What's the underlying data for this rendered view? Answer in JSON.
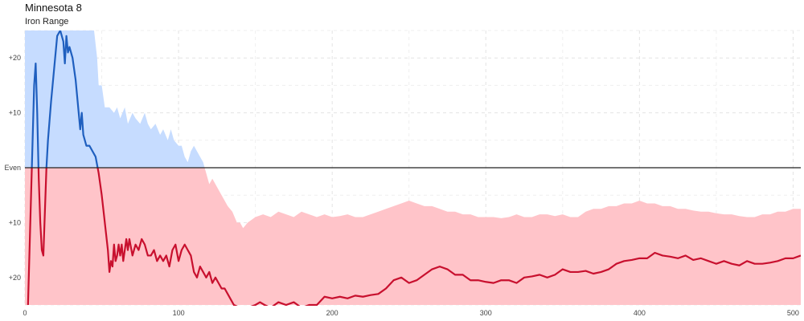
{
  "title": "Minnesota 8",
  "subtitle": "Iron Range",
  "chart_data": {
    "type": "line",
    "title": "Minnesota 8",
    "subtitle": "Iron Range",
    "xlim": [
      0,
      505
    ],
    "ylim": [
      -25,
      25
    ],
    "x_ticks": [
      0,
      100,
      200,
      300,
      400,
      500
    ],
    "y_ticks": [
      {
        "value": 20,
        "label": "+20"
      },
      {
        "value": 10,
        "label": "+10"
      },
      {
        "value": 0,
        "label": "Even"
      },
      {
        "value": -10,
        "label": "+10"
      },
      {
        "value": -20,
        "label": "+20"
      }
    ],
    "grid": true,
    "colors": {
      "positive_line": "#1f5fbf",
      "negative_line": "#c8102e",
      "positive_band": "#c6dcff",
      "negative_band": "#ffc4c9",
      "even_line": "#222222"
    },
    "series": [
      {
        "values": [
          [
            2,
            -25
          ],
          [
            3,
            -15
          ],
          [
            4,
            -5
          ],
          [
            5,
            5
          ],
          [
            6,
            15
          ],
          [
            7,
            19
          ],
          [
            8,
            10
          ],
          [
            9,
            -2
          ],
          [
            10,
            -10
          ],
          [
            11,
            -15
          ],
          [
            12,
            -16
          ],
          [
            13,
            -8
          ],
          [
            14,
            0
          ],
          [
            15,
            5
          ],
          [
            17,
            12
          ],
          [
            19,
            18
          ],
          [
            21,
            24
          ],
          [
            23,
            25
          ],
          [
            25,
            23
          ],
          [
            26,
            19
          ],
          [
            27,
            24
          ],
          [
            28,
            21
          ],
          [
            29,
            22
          ],
          [
            31,
            20
          ],
          [
            33,
            16
          ],
          [
            35,
            10
          ],
          [
            36,
            7
          ],
          [
            37,
            10
          ],
          [
            38,
            6
          ],
          [
            40,
            4
          ],
          [
            42,
            4
          ],
          [
            44,
            3
          ],
          [
            46,
            2
          ],
          [
            48,
            -1
          ],
          [
            50,
            -5
          ],
          [
            52,
            -10
          ],
          [
            54,
            -15
          ],
          [
            55,
            -19
          ],
          [
            56,
            -17
          ],
          [
            57,
            -18
          ],
          [
            58,
            -14
          ],
          [
            59,
            -17
          ],
          [
            60,
            -16
          ],
          [
            61,
            -14
          ],
          [
            62,
            -16
          ],
          [
            63,
            -14
          ],
          [
            64,
            -17
          ],
          [
            66,
            -13
          ],
          [
            67,
            -15
          ],
          [
            68,
            -13
          ],
          [
            70,
            -16
          ],
          [
            72,
            -14
          ],
          [
            74,
            -15
          ],
          [
            76,
            -13
          ],
          [
            78,
            -14
          ],
          [
            80,
            -16
          ],
          [
            82,
            -16
          ],
          [
            84,
            -15
          ],
          [
            86,
            -17
          ],
          [
            88,
            -16
          ],
          [
            90,
            -17
          ],
          [
            92,
            -16
          ],
          [
            94,
            -18
          ],
          [
            96,
            -15
          ],
          [
            98,
            -14
          ],
          [
            100,
            -17
          ],
          [
            102,
            -15
          ],
          [
            104,
            -14
          ],
          [
            106,
            -15
          ],
          [
            108,
            -16
          ],
          [
            110,
            -19
          ],
          [
            112,
            -20
          ],
          [
            114,
            -18
          ],
          [
            116,
            -19
          ],
          [
            118,
            -20
          ],
          [
            120,
            -19
          ],
          [
            122,
            -21
          ],
          [
            124,
            -20
          ],
          [
            126,
            -21
          ],
          [
            128,
            -22
          ],
          [
            130,
            -22
          ],
          [
            132,
            -23
          ],
          [
            134,
            -24
          ],
          [
            136,
            -25
          ],
          [
            140,
            -25.5
          ],
          [
            145,
            -25.5
          ],
          [
            150,
            -25
          ],
          [
            153,
            -24.5
          ],
          [
            156,
            -25
          ],
          [
            160,
            -25.5
          ],
          [
            165,
            -24.5
          ],
          [
            170,
            -25
          ],
          [
            175,
            -24.5
          ],
          [
            180,
            -25.5
          ],
          [
            185,
            -25
          ],
          [
            190,
            -25
          ],
          [
            195,
            -23.5
          ],
          [
            200,
            -23.8
          ],
          [
            205,
            -23.5
          ],
          [
            210,
            -23.8
          ],
          [
            215,
            -23.3
          ],
          [
            220,
            -23.5
          ],
          [
            225,
            -23.2
          ],
          [
            230,
            -23
          ],
          [
            235,
            -22
          ],
          [
            240,
            -20.5
          ],
          [
            245,
            -20
          ],
          [
            250,
            -21
          ],
          [
            255,
            -20.5
          ],
          [
            260,
            -19.5
          ],
          [
            265,
            -18.5
          ],
          [
            270,
            -18
          ],
          [
            275,
            -18.5
          ],
          [
            280,
            -19.5
          ],
          [
            285,
            -19.5
          ],
          [
            290,
            -20.5
          ],
          [
            295,
            -20.5
          ],
          [
            300,
            -20.8
          ],
          [
            305,
            -21
          ],
          [
            310,
            -20.5
          ],
          [
            315,
            -20.5
          ],
          [
            320,
            -21
          ],
          [
            325,
            -20
          ],
          [
            330,
            -19.8
          ],
          [
            335,
            -19.5
          ],
          [
            340,
            -20
          ],
          [
            345,
            -19.5
          ],
          [
            350,
            -18.5
          ],
          [
            355,
            -19
          ],
          [
            360,
            -19
          ],
          [
            365,
            -18.8
          ],
          [
            370,
            -19.3
          ],
          [
            375,
            -19
          ],
          [
            380,
            -18.5
          ],
          [
            385,
            -17.5
          ],
          [
            390,
            -17
          ],
          [
            395,
            -16.8
          ],
          [
            400,
            -16.5
          ],
          [
            405,
            -16.5
          ],
          [
            410,
            -15.5
          ],
          [
            415,
            -16
          ],
          [
            420,
            -16.2
          ],
          [
            425,
            -16.5
          ],
          [
            430,
            -16
          ],
          [
            435,
            -16.8
          ],
          [
            440,
            -16.5
          ],
          [
            445,
            -17
          ],
          [
            450,
            -17.5
          ],
          [
            455,
            -17
          ],
          [
            460,
            -17.5
          ],
          [
            465,
            -17.8
          ],
          [
            470,
            -17
          ],
          [
            475,
            -17.5
          ],
          [
            480,
            -17.5
          ],
          [
            485,
            -17.3
          ],
          [
            490,
            -17
          ],
          [
            495,
            -16.5
          ],
          [
            500,
            -16.5
          ],
          [
            505,
            -16
          ]
        ]
      }
    ],
    "band": [
      [
        0,
        -25,
        25
      ],
      [
        10,
        -25,
        25
      ],
      [
        30,
        -25,
        25
      ],
      [
        40,
        -25,
        25
      ],
      [
        45,
        -25,
        25
      ],
      [
        47,
        -25,
        20
      ],
      [
        48,
        -25,
        15
      ],
      [
        50,
        -25,
        15
      ],
      [
        52,
        -25,
        11
      ],
      [
        55,
        -25,
        11
      ],
      [
        58,
        -25,
        10
      ],
      [
        60,
        -25,
        11
      ],
      [
        62,
        -25,
        9
      ],
      [
        65,
        -25,
        11
      ],
      [
        67,
        -25,
        8
      ],
      [
        70,
        -25,
        10
      ],
      [
        72,
        -25,
        9
      ],
      [
        75,
        -25,
        8
      ],
      [
        78,
        -25,
        10
      ],
      [
        80,
        -25,
        8
      ],
      [
        82,
        -25,
        7
      ],
      [
        85,
        -25,
        8
      ],
      [
        88,
        -25,
        6
      ],
      [
        90,
        -25,
        7
      ],
      [
        93,
        -25,
        5
      ],
      [
        95,
        -25,
        7
      ],
      [
        97,
        -25,
        5
      ],
      [
        100,
        -25,
        4
      ],
      [
        102,
        -25,
        4
      ],
      [
        104,
        -25,
        2
      ],
      [
        106,
        -25,
        1
      ],
      [
        108,
        -25,
        3
      ],
      [
        110,
        -25,
        4
      ],
      [
        112,
        -25,
        3
      ],
      [
        114,
        -25,
        2
      ],
      [
        116,
        -25,
        1
      ],
      [
        118,
        -25,
        -1
      ],
      [
        120,
        -25,
        -3
      ],
      [
        122,
        -25,
        -2
      ],
      [
        124,
        -25,
        -3
      ],
      [
        126,
        -25,
        -4
      ],
      [
        128,
        -25,
        -5
      ],
      [
        130,
        -25,
        -6
      ],
      [
        132,
        -25,
        -7
      ],
      [
        135,
        -25,
        -8
      ],
      [
        138,
        -25,
        -10
      ],
      [
        140,
        -25,
        -10
      ],
      [
        142,
        -25,
        -11
      ],
      [
        145,
        -25,
        -10
      ],
      [
        150,
        -25,
        -9
      ],
      [
        155,
        -25,
        -8.5
      ],
      [
        160,
        -25,
        -9
      ],
      [
        165,
        -25,
        -8
      ],
      [
        170,
        -25,
        -8.5
      ],
      [
        175,
        -25,
        -9
      ],
      [
        180,
        -25,
        -8
      ],
      [
        185,
        -25,
        -8.5
      ],
      [
        190,
        -25,
        -9
      ],
      [
        195,
        -25,
        -8.5
      ],
      [
        200,
        -25,
        -9
      ],
      [
        205,
        -25,
        -8.8
      ],
      [
        210,
        -25,
        -8.5
      ],
      [
        215,
        -25,
        -9
      ],
      [
        220,
        -25,
        -9
      ],
      [
        225,
        -25,
        -8.5
      ],
      [
        230,
        -25,
        -8
      ],
      [
        235,
        -25,
        -7.5
      ],
      [
        240,
        -25,
        -7
      ],
      [
        245,
        -25,
        -6.5
      ],
      [
        250,
        -25,
        -6
      ],
      [
        255,
        -25,
        -6.5
      ],
      [
        260,
        -25,
        -7
      ],
      [
        265,
        -25,
        -7
      ],
      [
        270,
        -25,
        -7.5
      ],
      [
        275,
        -25,
        -8
      ],
      [
        280,
        -25,
        -8
      ],
      [
        285,
        -25,
        -8.5
      ],
      [
        290,
        -25,
        -8.5
      ],
      [
        295,
        -25,
        -9
      ],
      [
        300,
        -25,
        -9
      ],
      [
        305,
        -25,
        -9
      ],
      [
        310,
        -25,
        -9.2
      ],
      [
        315,
        -25,
        -9
      ],
      [
        320,
        -25,
        -8.5
      ],
      [
        325,
        -25,
        -9
      ],
      [
        330,
        -25,
        -9
      ],
      [
        335,
        -25,
        -8.5
      ],
      [
        340,
        -25,
        -8.5
      ],
      [
        345,
        -25,
        -8.8
      ],
      [
        350,
        -25,
        -8.5
      ],
      [
        355,
        -25,
        -9
      ],
      [
        360,
        -25,
        -9
      ],
      [
        365,
        -25,
        -8
      ],
      [
        370,
        -25,
        -7.5
      ],
      [
        375,
        -25,
        -7.5
      ],
      [
        380,
        -25,
        -7
      ],
      [
        385,
        -25,
        -7
      ],
      [
        390,
        -25,
        -6.5
      ],
      [
        395,
        -25,
        -6.5
      ],
      [
        400,
        -25,
        -6
      ],
      [
        405,
        -25,
        -6.5
      ],
      [
        410,
        -25,
        -6.5
      ],
      [
        415,
        -25,
        -7
      ],
      [
        420,
        -25,
        -7
      ],
      [
        425,
        -25,
        -7.5
      ],
      [
        430,
        -25,
        -7.5
      ],
      [
        435,
        -25,
        -7.8
      ],
      [
        440,
        -25,
        -8
      ],
      [
        445,
        -25,
        -8
      ],
      [
        450,
        -25,
        -8.3
      ],
      [
        455,
        -25,
        -8.5
      ],
      [
        460,
        -25,
        -8.5
      ],
      [
        465,
        -25,
        -8.8
      ],
      [
        470,
        -25,
        -9
      ],
      [
        475,
        -25,
        -9
      ],
      [
        480,
        -25,
        -8.5
      ],
      [
        485,
        -25,
        -8.5
      ],
      [
        490,
        -25,
        -8
      ],
      [
        495,
        -25,
        -8
      ],
      [
        500,
        -25,
        -7.5
      ],
      [
        505,
        -25,
        -7.5
      ]
    ]
  }
}
